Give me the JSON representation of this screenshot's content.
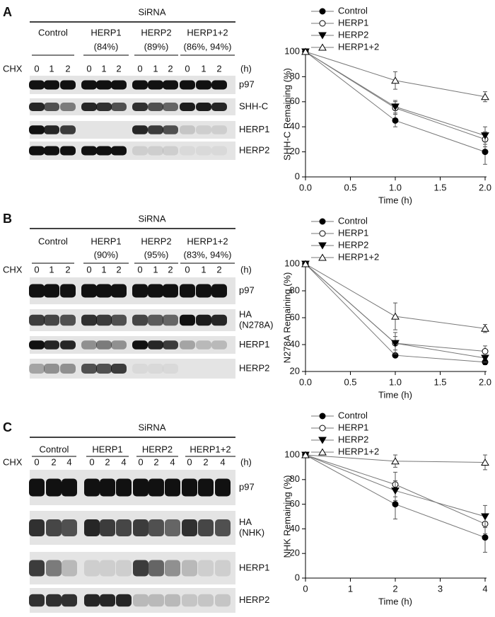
{
  "panels": [
    {
      "letter": "A",
      "siRNA": "SiRNA",
      "treatment": "CHX",
      "unit": "(h)",
      "lanes": [
        "0",
        "1",
        "2"
      ],
      "groups": [
        {
          "name": "Control"
        },
        {
          "name": "HERP1",
          "pct": "(84%)"
        },
        {
          "name": "HERP2",
          "pct": "(89%)"
        },
        {
          "name": "HERP1+2",
          "pct": "(86%, 94%)"
        }
      ],
      "rows": [
        [
          "p97"
        ],
        [
          "SHH-C"
        ],
        [
          "HERP1"
        ],
        [
          "HERP2"
        ]
      ]
    },
    {
      "letter": "B",
      "siRNA": "SiRNA",
      "treatment": "CHX",
      "unit": "(h)",
      "lanes": [
        "0",
        "1",
        "2"
      ],
      "groups": [
        {
          "name": "Control"
        },
        {
          "name": "HERP1",
          "pct": "(90%)"
        },
        {
          "name": "HERP2",
          "pct": "(95%)"
        },
        {
          "name": "HERP1+2",
          "pct": "(83%, 94%)"
        }
      ],
      "rows": [
        [
          "p97"
        ],
        [
          "HA",
          "(N278A)"
        ],
        [
          "HERP1"
        ],
        [
          "HERP2"
        ]
      ]
    },
    {
      "letter": "C",
      "siRNA": "SiRNA",
      "treatment": "CHX",
      "unit": "(h)",
      "lanes": [
        "0",
        "2",
        "4"
      ],
      "groups": [
        {
          "name": "Control"
        },
        {
          "name": "HERP1"
        },
        {
          "name": "HERP2"
        },
        {
          "name": "HERP1+2"
        }
      ],
      "rows": [
        [
          "p97"
        ],
        [
          "HA",
          "(NHK)"
        ],
        [
          "HERP1"
        ],
        [
          "HERP2"
        ]
      ]
    }
  ],
  "chart_data": [
    {
      "type": "line",
      "ylabel": "SHH-C Remaining (%)",
      "xlabel": "Time (h)",
      "x": [
        0,
        1,
        2
      ],
      "xlim": [
        0,
        2
      ],
      "xticks": [
        {
          "value": 0,
          "label": "0.0"
        },
        {
          "value": 0.5,
          "label": "0.5"
        },
        {
          "value": 1,
          "label": "1.0"
        },
        {
          "value": 1.5,
          "label": "1.5"
        },
        {
          "value": 2,
          "label": "2.0"
        }
      ],
      "ylim": [
        0,
        100
      ],
      "yticks": [
        0,
        20,
        40,
        60,
        80,
        100
      ],
      "series": [
        {
          "name": "Control",
          "color": "#000000",
          "marker": "filled-circle",
          "values": [
            100,
            45,
            20
          ],
          "errors": [
            0,
            5,
            10
          ]
        },
        {
          "name": "HERP1",
          "color": "#000000",
          "marker": "open-circle",
          "values": [
            100,
            55,
            30
          ],
          "errors": [
            0,
            5,
            6
          ]
        },
        {
          "name": "HERP2",
          "color": "#000000",
          "marker": "filled-triangle-down",
          "values": [
            100,
            56,
            33
          ],
          "errors": [
            0,
            5,
            7
          ]
        },
        {
          "name": "HERP1+2",
          "color": "#000000",
          "marker": "open-triangle-up",
          "values": [
            100,
            77,
            64
          ],
          "errors": [
            0,
            7,
            4
          ]
        }
      ]
    },
    {
      "type": "line",
      "ylabel": "N278A Remaining (%)",
      "xlabel": "Time (h)",
      "x": [
        0,
        1,
        2
      ],
      "xlim": [
        0,
        2
      ],
      "xticks": [
        {
          "value": 0,
          "label": "0.0"
        },
        {
          "value": 0.5,
          "label": "0.5"
        },
        {
          "value": 1,
          "label": "1.0"
        },
        {
          "value": 1.5,
          "label": "1.5"
        },
        {
          "value": 2,
          "label": "2.0"
        }
      ],
      "ylim": [
        20,
        100
      ],
      "yticks": [
        20,
        40,
        60,
        80,
        100
      ],
      "series": [
        {
          "name": "Control",
          "color": "#000000",
          "marker": "filled-circle",
          "values": [
            100,
            32,
            27
          ],
          "errors": [
            0,
            0,
            2
          ]
        },
        {
          "name": "HERP1",
          "color": "#000000",
          "marker": "open-circle",
          "values": [
            100,
            41,
            35
          ],
          "errors": [
            0,
            5,
            4
          ]
        },
        {
          "name": "HERP2",
          "color": "#000000",
          "marker": "filled-triangle-down",
          "values": [
            100,
            41,
            30
          ],
          "errors": [
            0,
            8,
            3
          ]
        },
        {
          "name": "HERP1+2",
          "color": "#000000",
          "marker": "open-triangle-up",
          "values": [
            100,
            61,
            52
          ],
          "errors": [
            0,
            10,
            3
          ]
        }
      ]
    },
    {
      "type": "line",
      "ylabel": "NHK Remaining (%)",
      "xlabel": "Time (h)",
      "x": [
        0,
        2,
        4
      ],
      "xlim": [
        0,
        4
      ],
      "xticks": [
        0,
        1,
        2,
        3,
        4
      ],
      "ylim": [
        0,
        100
      ],
      "yticks": [
        0,
        20,
        40,
        60,
        80,
        100
      ],
      "series": [
        {
          "name": "Control",
          "color": "#000000",
          "marker": "filled-circle",
          "values": [
            100,
            60,
            33
          ],
          "errors": [
            0,
            12,
            12
          ]
        },
        {
          "name": "HERP1",
          "color": "#000000",
          "marker": "open-circle",
          "values": [
            100,
            76,
            44
          ],
          "errors": [
            0,
            10,
            8
          ]
        },
        {
          "name": "HERP2",
          "color": "#000000",
          "marker": "filled-triangle-down",
          "values": [
            100,
            71,
            50
          ],
          "errors": [
            0,
            8,
            9
          ]
        },
        {
          "name": "HERP1+2",
          "color": "#000000",
          "marker": "open-triangle-up",
          "values": [
            100,
            95,
            94
          ],
          "errors": [
            0,
            5,
            6
          ]
        }
      ]
    }
  ]
}
